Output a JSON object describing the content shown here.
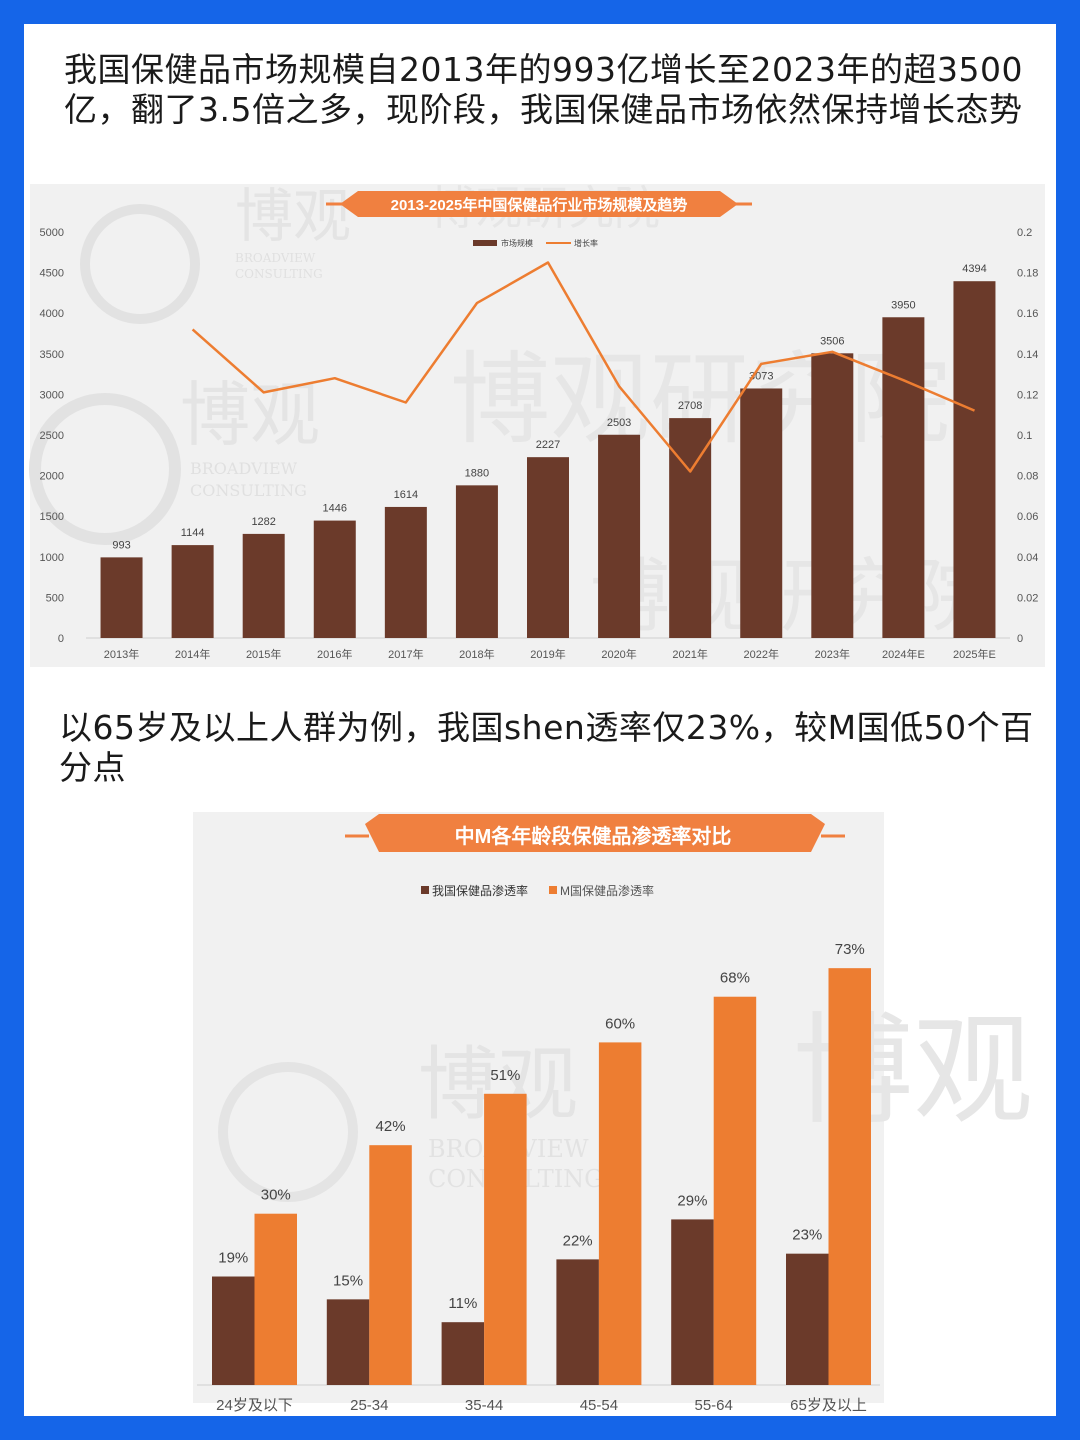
{
  "headings": {
    "text1": "我国保健品市场规模自2013年的993亿增长至2023年的超3500亿，翻了3.5倍之多，现阶段，我国保健品市场依然保持增长态势",
    "text2": "以65岁及以上人群为例，我国shen透率仅23%，较M国低50个百分点"
  },
  "watermark": {
    "brand_cn": "博观",
    "brand_en_1": "BROADVIEW",
    "brand_en_2": "CONSULTING",
    "research": "博观研究院"
  },
  "colors": {
    "page_bg": "#1565e8",
    "bar_brown": "#6b3a2a",
    "line_orange": "#ed7d31",
    "bar_orange": "#ed7d31",
    "banner": "#f08040"
  },
  "chart_data": [
    {
      "type": "bar",
      "title": "2013-2025年中国保健品行业市场规模及趋势",
      "categories": [
        "2013年",
        "2014年",
        "2015年",
        "2016年",
        "2017年",
        "2018年",
        "2019年",
        "2020年",
        "2021年",
        "2022年",
        "2023年",
        "2024年E",
        "2025年E"
      ],
      "series": [
        {
          "name": "市场规模",
          "kind": "bar",
          "axis": "left",
          "values": [
            993,
            1144,
            1282,
            1446,
            1614,
            1880,
            2227,
            2503,
            2708,
            3073,
            3506,
            3950,
            4394
          ]
        },
        {
          "name": "增长率",
          "kind": "line",
          "axis": "right",
          "values": [
            null,
            0.152,
            0.121,
            0.128,
            0.116,
            0.165,
            0.185,
            0.124,
            0.082,
            0.135,
            0.141,
            0.127,
            0.112
          ]
        }
      ],
      "ylim": [
        0,
        5000
      ],
      "yticks": [
        0,
        500,
        1000,
        1500,
        2000,
        2500,
        3000,
        3500,
        4000,
        4500,
        5000
      ],
      "y2lim": [
        0,
        0.2
      ],
      "y2ticks": [
        0,
        0.02,
        0.04,
        0.06,
        0.08,
        0.1,
        0.12,
        0.14,
        0.16,
        0.18,
        0.2
      ],
      "legend": "top-center",
      "grid": false
    },
    {
      "type": "bar",
      "title": "中M各年龄段保健品渗透率对比",
      "categories": [
        "24岁及以下",
        "25-34",
        "35-44",
        "45-54",
        "55-64",
        "65岁及以上"
      ],
      "series": [
        {
          "name": "我国保健品渗透率",
          "values": [
            19,
            15,
            11,
            22,
            29,
            23
          ],
          "labels": [
            "19%",
            "15%",
            "11%",
            "22%",
            "29%",
            "23%"
          ]
        },
        {
          "name": "M国保健品渗透率",
          "values": [
            30,
            42,
            51,
            60,
            68,
            73
          ],
          "labels": [
            "30%",
            "42%",
            "51%",
            "60%",
            "68%",
            "73%"
          ]
        }
      ],
      "ylim": [
        0,
        80
      ],
      "legend": "top-center",
      "grid": false
    }
  ]
}
